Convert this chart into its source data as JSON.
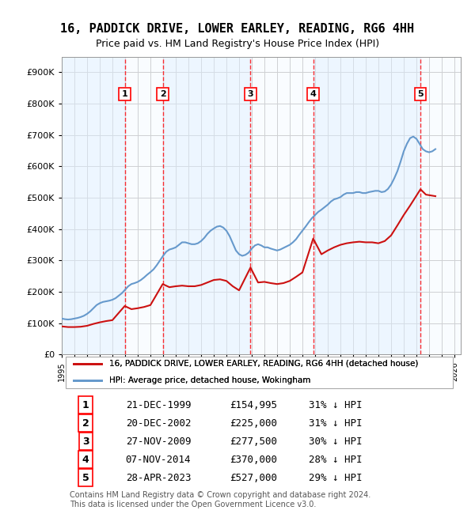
{
  "title": "16, PADDICK DRIVE, LOWER EARLEY, READING, RG6 4HH",
  "subtitle": "Price paid vs. HM Land Registry's House Price Index (HPI)",
  "ylabel_ticks": [
    "£0",
    "£100K",
    "£200K",
    "£300K",
    "£400K",
    "£500K",
    "£600K",
    "£700K",
    "£800K",
    "£900K"
  ],
  "ytick_values": [
    0,
    100000,
    200000,
    300000,
    400000,
    500000,
    600000,
    700000,
    800000,
    900000
  ],
  "ylim": [
    0,
    950000
  ],
  "xlim_start": 1995.0,
  "xlim_end": 2026.5,
  "sale_events": [
    {
      "num": 1,
      "date": "21-DEC-1999",
      "year": 1999.97,
      "price": 154995,
      "pct": "31% ↓ HPI"
    },
    {
      "num": 2,
      "date": "20-DEC-2002",
      "year": 2002.97,
      "price": 225000,
      "pct": "31% ↓ HPI"
    },
    {
      "num": 3,
      "date": "27-NOV-2009",
      "year": 2009.9,
      "price": 277500,
      "pct": "30% ↓ HPI"
    },
    {
      "num": 4,
      "date": "07-NOV-2014",
      "year": 2014.85,
      "price": 370000,
      "pct": "28% ↓ HPI"
    },
    {
      "num": 5,
      "date": "28-APR-2023",
      "year": 2023.32,
      "price": 527000,
      "pct": "29% ↓ HPI"
    }
  ],
  "hpi_line_color": "#6699cc",
  "price_line_color": "#cc1111",
  "shade_color": "#ddeeff",
  "hatch_color": "#aabbcc",
  "grid_color": "#cccccc",
  "background_color": "#ffffff",
  "legend_label_red": "16, PADDICK DRIVE, LOWER EARLEY, READING, RG6 4HH (detached house)",
  "legend_label_blue": "HPI: Average price, detached house, Wokingham",
  "footer": "Contains HM Land Registry data © Crown copyright and database right 2024.\nThis data is licensed under the Open Government Licence v3.0.",
  "hpi_data_x": [
    1995.0,
    1995.25,
    1995.5,
    1995.75,
    1996.0,
    1996.25,
    1996.5,
    1996.75,
    1997.0,
    1997.25,
    1997.5,
    1997.75,
    1998.0,
    1998.25,
    1998.5,
    1998.75,
    1999.0,
    1999.25,
    1999.5,
    1999.75,
    2000.0,
    2000.25,
    2000.5,
    2000.75,
    2001.0,
    2001.25,
    2001.5,
    2001.75,
    2002.0,
    2002.25,
    2002.5,
    2002.75,
    2003.0,
    2003.25,
    2003.5,
    2003.75,
    2004.0,
    2004.25,
    2004.5,
    2004.75,
    2005.0,
    2005.25,
    2005.5,
    2005.75,
    2006.0,
    2006.25,
    2006.5,
    2006.75,
    2007.0,
    2007.25,
    2007.5,
    2007.75,
    2008.0,
    2008.25,
    2008.5,
    2008.75,
    2009.0,
    2009.25,
    2009.5,
    2009.75,
    2010.0,
    2010.25,
    2010.5,
    2010.75,
    2011.0,
    2011.25,
    2011.5,
    2011.75,
    2012.0,
    2012.25,
    2012.5,
    2012.75,
    2013.0,
    2013.25,
    2013.5,
    2013.75,
    2014.0,
    2014.25,
    2014.5,
    2014.75,
    2015.0,
    2015.25,
    2015.5,
    2015.75,
    2016.0,
    2016.25,
    2016.5,
    2016.75,
    2017.0,
    2017.25,
    2017.5,
    2017.75,
    2018.0,
    2018.25,
    2018.5,
    2018.75,
    2019.0,
    2019.25,
    2019.5,
    2019.75,
    2020.0,
    2020.25,
    2020.5,
    2020.75,
    2021.0,
    2021.25,
    2021.5,
    2021.75,
    2022.0,
    2022.25,
    2022.5,
    2022.75,
    2023.0,
    2023.25,
    2023.5,
    2023.75,
    2024.0,
    2024.25,
    2024.5
  ],
  "hpi_data_y": [
    115000,
    113000,
    112000,
    113000,
    115000,
    117000,
    120000,
    124000,
    130000,
    138000,
    148000,
    158000,
    164000,
    168000,
    170000,
    172000,
    175000,
    180000,
    188000,
    196000,
    207000,
    218000,
    225000,
    228000,
    232000,
    238000,
    246000,
    255000,
    263000,
    272000,
    285000,
    300000,
    315000,
    328000,
    335000,
    338000,
    342000,
    350000,
    358000,
    358000,
    355000,
    352000,
    352000,
    355000,
    362000,
    372000,
    385000,
    395000,
    402000,
    408000,
    410000,
    405000,
    395000,
    378000,
    355000,
    332000,
    320000,
    315000,
    318000,
    325000,
    338000,
    348000,
    352000,
    348000,
    342000,
    342000,
    338000,
    335000,
    332000,
    335000,
    340000,
    345000,
    350000,
    358000,
    368000,
    382000,
    395000,
    408000,
    422000,
    435000,
    445000,
    455000,
    462000,
    470000,
    478000,
    488000,
    495000,
    498000,
    502000,
    510000,
    515000,
    515000,
    515000,
    518000,
    518000,
    515000,
    515000,
    518000,
    520000,
    522000,
    522000,
    518000,
    520000,
    528000,
    542000,
    562000,
    585000,
    615000,
    648000,
    672000,
    690000,
    695000,
    688000,
    672000,
    655000,
    648000,
    645000,
    648000,
    655000
  ],
  "red_data_x": [
    1995.0,
    1995.5,
    1996.0,
    1996.5,
    1997.0,
    1997.5,
    1998.0,
    1998.5,
    1999.0,
    1999.97,
    2000.5,
    2001.0,
    2001.5,
    2002.0,
    2002.97,
    2003.5,
    2004.0,
    2004.5,
    2005.0,
    2005.5,
    2006.0,
    2006.5,
    2007.0,
    2007.5,
    2008.0,
    2008.5,
    2009.0,
    2009.9,
    2010.5,
    2011.0,
    2011.5,
    2012.0,
    2012.5,
    2013.0,
    2013.5,
    2014.0,
    2014.85,
    2015.5,
    2016.0,
    2016.5,
    2017.0,
    2017.5,
    2018.0,
    2018.5,
    2019.0,
    2019.5,
    2020.0,
    2020.5,
    2021.0,
    2021.5,
    2022.0,
    2022.5,
    2023.32,
    2023.75,
    2024.5
  ],
  "red_data_y": [
    90000,
    88000,
    88000,
    89000,
    92000,
    98000,
    103000,
    107000,
    110000,
    154995,
    145000,
    148000,
    152000,
    158000,
    225000,
    215000,
    218000,
    220000,
    218000,
    218000,
    222000,
    230000,
    238000,
    240000,
    235000,
    218000,
    205000,
    277500,
    230000,
    232000,
    228000,
    225000,
    228000,
    235000,
    248000,
    262000,
    370000,
    320000,
    332000,
    342000,
    350000,
    355000,
    358000,
    360000,
    358000,
    358000,
    355000,
    362000,
    380000,
    412000,
    445000,
    475000,
    527000,
    510000,
    505000
  ]
}
